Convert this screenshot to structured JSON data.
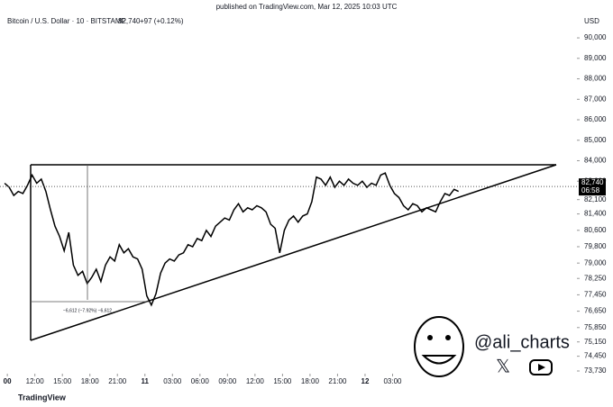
{
  "header": {
    "published": "published on TradingView.com, Mar 12, 2025 10:03 UTC",
    "symbol": "Bitcoin / U.S. Dollar · 10 · BITSTAMP",
    "last": "82,740",
    "change": "+97 (+0.12%)",
    "currency": "USD",
    "countdown": "06:58",
    "annotation": "−6,612 (−7.92%) −6,612",
    "handle": "@ali_charts",
    "brand": "TradingView"
  },
  "chart_data": {
    "type": "line",
    "color": "#000000",
    "x": [
      8.7,
      9.2,
      9.7,
      10.2,
      10.7,
      11.2,
      11.7,
      12.2,
      12.7,
      13.2,
      13.7,
      14.2,
      14.7,
      15.2,
      15.7,
      16.2,
      16.7,
      17.2,
      17.7,
      18.2,
      18.7,
      19.2,
      19.7,
      20.2,
      20.7,
      21.2,
      21.7,
      22.2,
      22.7,
      23.2,
      23.7,
      24.2,
      24.7,
      25.2,
      25.7,
      26.2,
      26.7,
      27.2,
      27.7,
      28.2,
      28.7,
      29.2,
      29.7,
      30.2,
      30.7,
      31.2,
      31.7,
      32.2,
      32.7,
      33.2,
      33.7,
      34.2,
      34.7,
      35.2,
      35.7,
      36.2,
      36.7,
      37.2,
      37.7,
      38.2,
      38.7,
      39.2,
      39.7,
      40.2,
      40.7,
      41.2,
      41.7,
      42.2,
      42.7,
      43.2,
      43.7,
      44.2,
      44.7,
      45.2,
      45.7,
      46.2,
      46.7,
      47.2,
      47.7,
      48.2,
      48.7,
      49.2,
      49.7,
      50.2,
      50.7,
      51.2,
      51.7,
      52.2,
      52.7,
      53.2,
      53.7,
      54.2,
      54.7,
      55.2,
      55.7,
      56.2,
      56.7,
      57.2,
      57.7,
      58.2
    ],
    "values": [
      82900,
      82700,
      82300,
      82500,
      82400,
      82800,
      83300,
      82900,
      83100,
      82500,
      81600,
      80800,
      80300,
      79600,
      80500,
      78900,
      78400,
      78600,
      78000,
      78300,
      78700,
      78100,
      78900,
      79300,
      79100,
      79900,
      79500,
      79700,
      79300,
      79200,
      78700,
      77400,
      76950,
      77500,
      78500,
      79000,
      79200,
      79100,
      79400,
      79500,
      79900,
      79800,
      80200,
      80100,
      80600,
      80300,
      80800,
      81000,
      81200,
      81100,
      81600,
      81900,
      81500,
      81700,
      81600,
      81800,
      81700,
      81500,
      80900,
      80700,
      79500,
      80600,
      81100,
      81300,
      81000,
      81300,
      81400,
      82000,
      83200,
      83100,
      82800,
      83200,
      82700,
      83000,
      82800,
      83100,
      82900,
      82800,
      83000,
      82700,
      82900,
      82800,
      83300,
      83400,
      82800,
      82400,
      82200,
      81800,
      81600,
      81900,
      81800,
      81500,
      81700,
      81600,
      81500,
      82000,
      82400,
      82300,
      82600,
      82500
    ],
    "xlim": [
      8.2,
      71.1
    ],
    "xticks": [
      {
        "value": 9,
        "label": "00"
      },
      {
        "value": 12,
        "label": "12:00"
      },
      {
        "value": 15,
        "label": "15:00"
      },
      {
        "value": 18,
        "label": "18:00"
      },
      {
        "value": 21,
        "label": "21:00"
      },
      {
        "value": 24,
        "label": "11"
      },
      {
        "value": 27,
        "label": "03:00"
      },
      {
        "value": 30,
        "label": "06:00"
      },
      {
        "value": 33,
        "label": "09:00"
      },
      {
        "value": 36,
        "label": "12:00"
      },
      {
        "value": 39,
        "label": "15:00"
      },
      {
        "value": 42,
        "label": "18:00"
      },
      {
        "value": 45,
        "label": "21:00"
      },
      {
        "value": 48,
        "label": "12"
      },
      {
        "value": 51,
        "label": "03:00"
      }
    ],
    "ylim": [
      72850,
      90970
    ],
    "yticks": [
      {
        "value": 90000,
        "label": "90,000"
      },
      {
        "value": 89000,
        "label": "89,000"
      },
      {
        "value": 88000,
        "label": "88,000"
      },
      {
        "value": 87000,
        "label": "87,000"
      },
      {
        "value": 86000,
        "label": "86,000"
      },
      {
        "value": 85000,
        "label": "85,000"
      },
      {
        "value": 84000,
        "label": "84,000"
      },
      {
        "value": 83000,
        "label": "83,000"
      },
      {
        "value": 82100,
        "label": "82,100"
      },
      {
        "value": 81400,
        "label": "81,400"
      },
      {
        "value": 80600,
        "label": "80,600"
      },
      {
        "value": 79800,
        "label": "79,800"
      },
      {
        "value": 79000,
        "label": "79,000"
      },
      {
        "value": 78250,
        "label": "78,250"
      },
      {
        "value": 77450,
        "label": "77,450"
      },
      {
        "value": 76650,
        "label": "76,650"
      },
      {
        "value": 75850,
        "label": "75,850"
      },
      {
        "value": 75150,
        "label": "75,150"
      },
      {
        "value": 74450,
        "label": "74,450"
      },
      {
        "value": 73730,
        "label": "73,730"
      }
    ],
    "last_price": 82740
  }
}
